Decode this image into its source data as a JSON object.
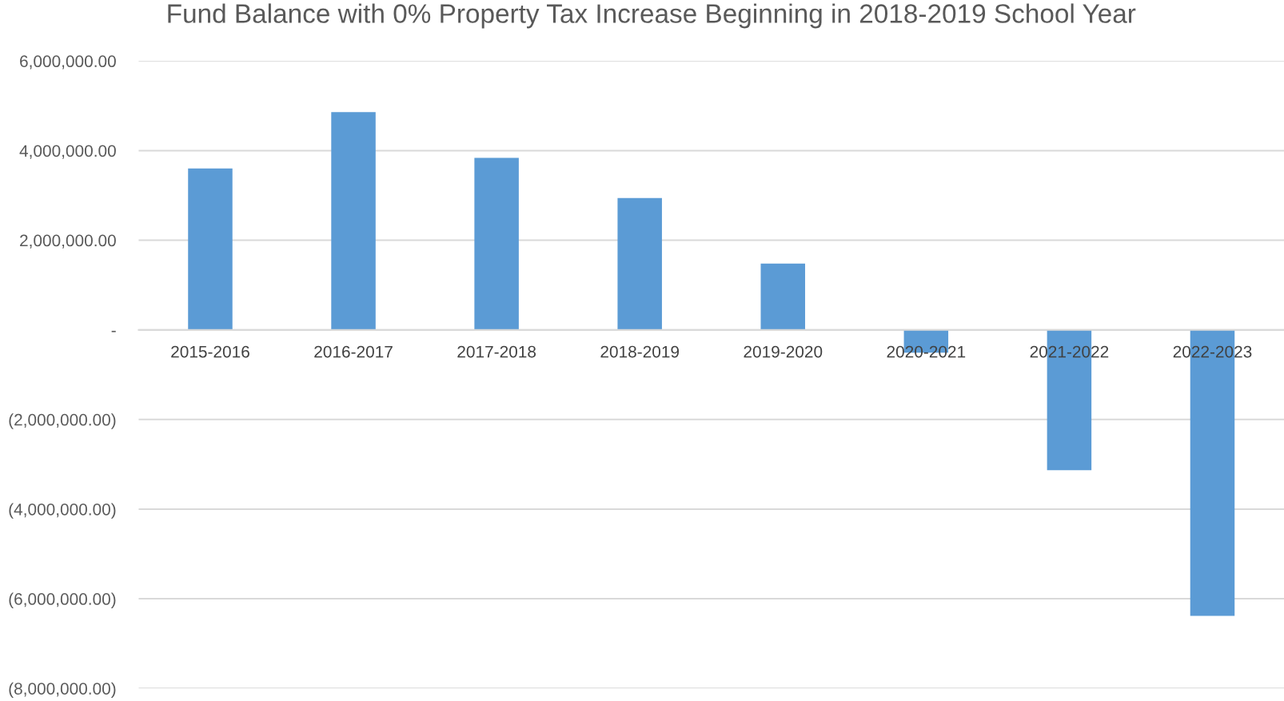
{
  "chart_data": {
    "type": "bar",
    "title": "Fund Balance with 0% Property Tax Increase Beginning in 2018-2019 School Year",
    "categories": [
      "2015-2016",
      "2016-2017",
      "2017-2018",
      "2018-2019",
      "2019-2020",
      "2020-2021",
      "2021-2022",
      "2022-2023"
    ],
    "values": [
      3600000,
      4860000,
      3840000,
      2940000,
      1480000,
      -510000,
      -3130000,
      -6380000
    ],
    "color": "#5b9bd5",
    "ylim": [
      -8000000,
      6000000
    ],
    "yticks": [
      {
        "value": -8000000,
        "label": "(8,000,000.00)"
      },
      {
        "value": -6000000,
        "label": "(6,000,000.00)"
      },
      {
        "value": -4000000,
        "label": "(4,000,000.00)"
      },
      {
        "value": -2000000,
        "label": "(2,000,000.00)"
      },
      {
        "value": 0,
        "label": "-"
      },
      {
        "value": 2000000,
        "label": "2,000,000.00"
      },
      {
        "value": 4000000,
        "label": "4,000,000.00"
      },
      {
        "value": 6000000,
        "label": "6,000,000.00"
      }
    ],
    "grid": "y"
  }
}
